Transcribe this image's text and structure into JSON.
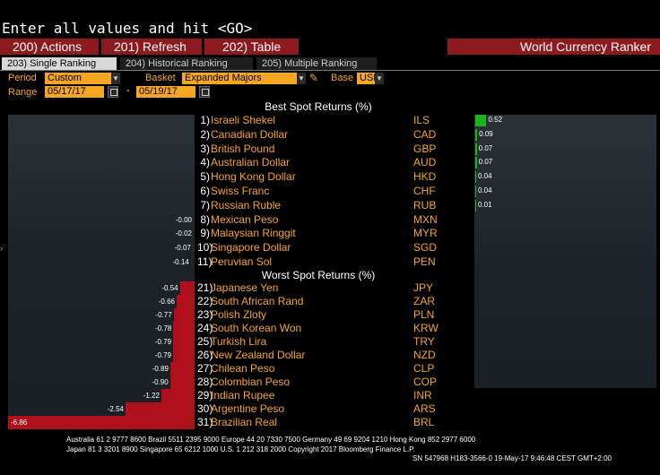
{
  "command_line": "Enter all values and hit <GO>",
  "menu": {
    "actions": "200) Actions",
    "refresh": "201) Refresh",
    "table": "202) Table",
    "title": "World Currency Ranker"
  },
  "tabs": [
    {
      "label": "203) Single Ranking"
    },
    {
      "label": "204) Historical Ranking"
    },
    {
      "label": "205) Multiple Ranking"
    }
  ],
  "controls": {
    "period_label": "Period",
    "period_value": "Custom",
    "basket_label": "Basket",
    "basket_value": "Expanded Majors",
    "base_label": "Base",
    "base_value": "USD",
    "range_label": "Range",
    "range_start": "05/17/17",
    "range_sep": "-",
    "range_end": "05/19/17"
  },
  "best_header": "Best Spot Returns (%)",
  "worst_header": "Worst Spot Returns (%)",
  "best": [
    {
      "rank": "1)",
      "name": "Israeli Shekel",
      "code": "ILS",
      "value": "0.52"
    },
    {
      "rank": "2)",
      "name": "Canadian Dollar",
      "code": "CAD",
      "value": "0.09"
    },
    {
      "rank": "3)",
      "name": "British Pound",
      "code": "GBP",
      "value": "0.07"
    },
    {
      "rank": "4)",
      "name": "Australian Dollar",
      "code": "AUD",
      "value": "0.07"
    },
    {
      "rank": "5)",
      "name": "Hong Kong Dollar",
      "code": "HKD",
      "value": "0.04"
    },
    {
      "rank": "6)",
      "name": "Swiss Franc",
      "code": "CHF",
      "value": "0.04"
    },
    {
      "rank": "7)",
      "name": "Russian Ruble",
      "code": "RUB",
      "value": "0.01"
    },
    {
      "rank": "8)",
      "name": "Mexican Peso",
      "code": "MXN",
      "value": "-0.00"
    },
    {
      "rank": "9)",
      "name": "Malaysian Ringgit",
      "code": "MYR",
      "value": "-0.02"
    },
    {
      "rank": "10)",
      "name": "Singapore Dollar",
      "code": "SGD",
      "value": "-0.07"
    },
    {
      "rank": "11)",
      "name": "Peruvian Sol",
      "code": "PEN",
      "value": "-0.14"
    }
  ],
  "worst": [
    {
      "rank": "21)",
      "name": "Japanese Yen",
      "code": "JPY",
      "value": "-0.54"
    },
    {
      "rank": "22)",
      "name": "South African Rand",
      "code": "ZAR",
      "value": "-0.66"
    },
    {
      "rank": "23)",
      "name": "Polish Zloty",
      "code": "PLN",
      "value": "-0.77"
    },
    {
      "rank": "24)",
      "name": "South Korean Won",
      "code": "KRW",
      "value": "-0.78"
    },
    {
      "rank": "25)",
      "name": "Turkish Lira",
      "code": "TRY",
      "value": "-0.79"
    },
    {
      "rank": "26)",
      "name": "New Zealand Dollar",
      "code": "NZD",
      "value": "-0.79"
    },
    {
      "rank": "27)",
      "name": "Chilean Peso",
      "code": "CLP",
      "value": "-0.89"
    },
    {
      "rank": "28)",
      "name": "Colombian Peso",
      "code": "COP",
      "value": "-0.90"
    },
    {
      "rank": "29)",
      "name": "Indian Rupee",
      "code": "INR",
      "value": "-1.22"
    },
    {
      "rank": "30)",
      "name": "Argentine Peso",
      "code": "ARS",
      "value": "-2.54"
    },
    {
      "rank": "31)",
      "name": "Brazilian Real",
      "code": "BRL",
      "value": "-6.86"
    }
  ],
  "side_arrow": "›",
  "footer": {
    "line1": "Australia 61 2 9777 8600 Brazil 5511 2395 9000 Europe 44 20 7330 7500 Germany 49 69 9204 1210 Hong Kong 852 2977 6000",
    "line2": "Japan 81 3 3201 8900       Singapore 65 6212 1000       U.S. 1 212 318 2000          Copyright 2017 Bloomberg Finance L.P.",
    "line3": "SN 547968 H183-3566-0 19-May-17  9:46:48 CEST GMT+2:00"
  },
  "colors": {
    "bloomberg_red": "#8c1a1f",
    "amber": "#f5a623",
    "positive_bar": "#1db31d",
    "negative_bar": "#b0101c"
  }
}
